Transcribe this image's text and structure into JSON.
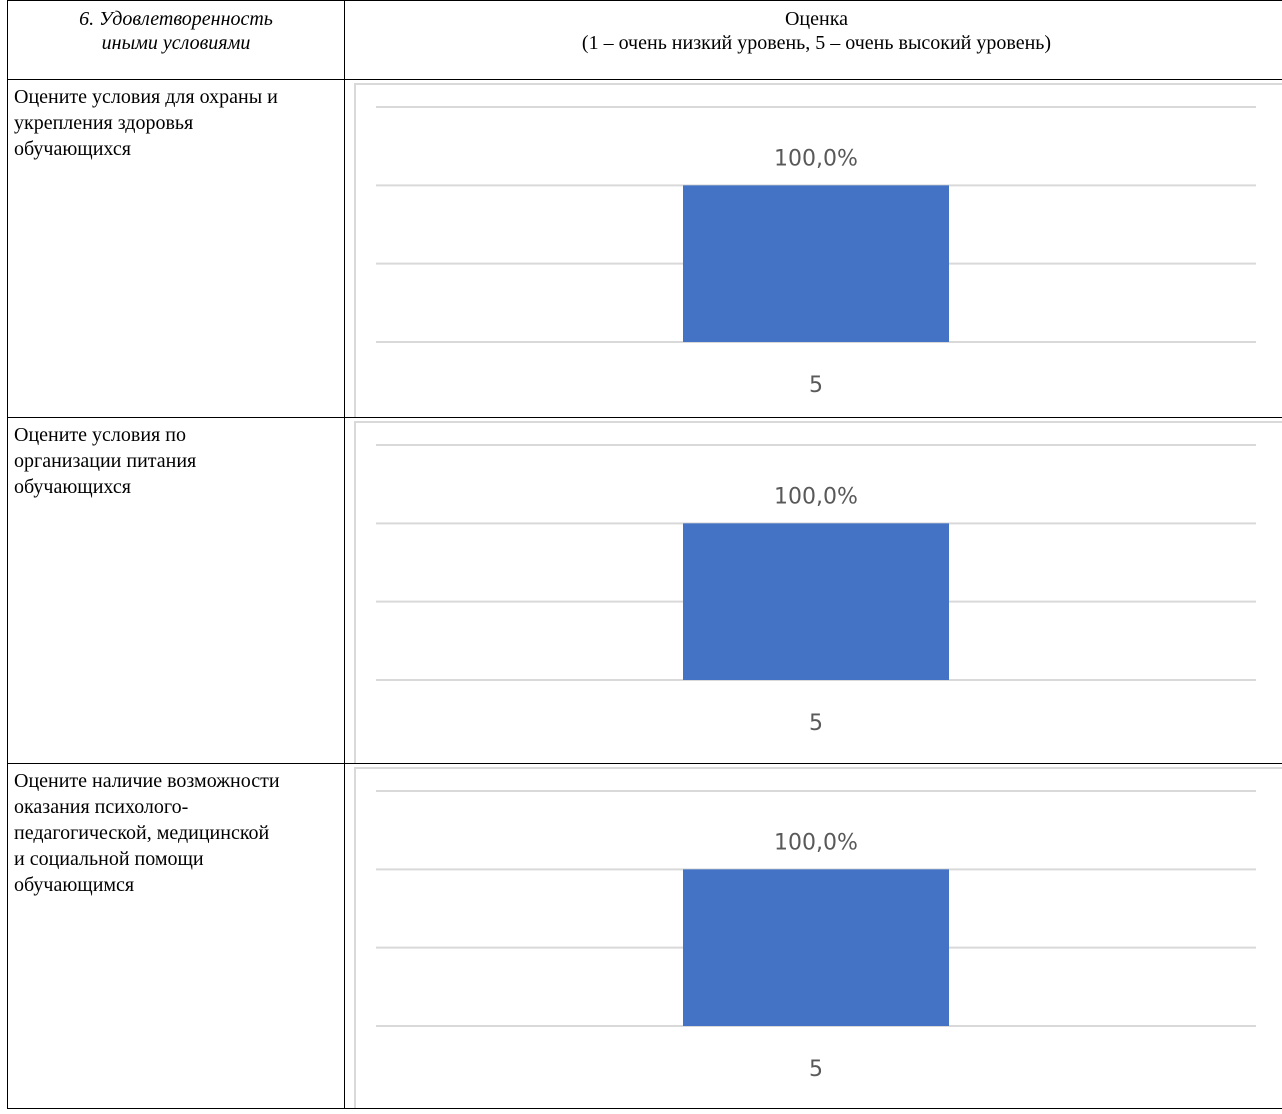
{
  "table": {
    "header_left": [
      "6. Удовлетворенность",
      "иными условиями"
    ],
    "header_right": [
      "Оценка",
      "(1 – очень низкий уровень, 5 – очень высокий уровень)"
    ]
  },
  "rows": [
    {
      "question": "Оцените условия для охраны и укрепления здоровья обучающихся"
    },
    {
      "question": "Оцените условия по организации питания обучающихся"
    },
    {
      "question": "Оцените наличие возможности оказания психолого-педагогической, медицинской и социальной помощи обучающимся"
    }
  ],
  "colors": {
    "bar": "#4472c4",
    "gridline": "#d9d9d9",
    "label_text": "#595959"
  },
  "chart_data": [
    {
      "type": "bar",
      "categories": [
        "5"
      ],
      "series": [
        {
          "values": [
            100.0
          ]
        }
      ],
      "data_labels": [
        "100,0%"
      ],
      "ylim": [
        0,
        150
      ],
      "grid": true,
      "legend": "none"
    },
    {
      "type": "bar",
      "categories": [
        "5"
      ],
      "series": [
        {
          "values": [
            100.0
          ]
        }
      ],
      "data_labels": [
        "100,0%"
      ],
      "ylim": [
        0,
        150
      ],
      "grid": true,
      "legend": "none"
    },
    {
      "type": "bar",
      "categories": [
        "5"
      ],
      "series": [
        {
          "values": [
            100.0
          ]
        }
      ],
      "data_labels": [
        "100,0%"
      ],
      "ylim": [
        0,
        150
      ],
      "grid": true,
      "legend": "none"
    }
  ]
}
